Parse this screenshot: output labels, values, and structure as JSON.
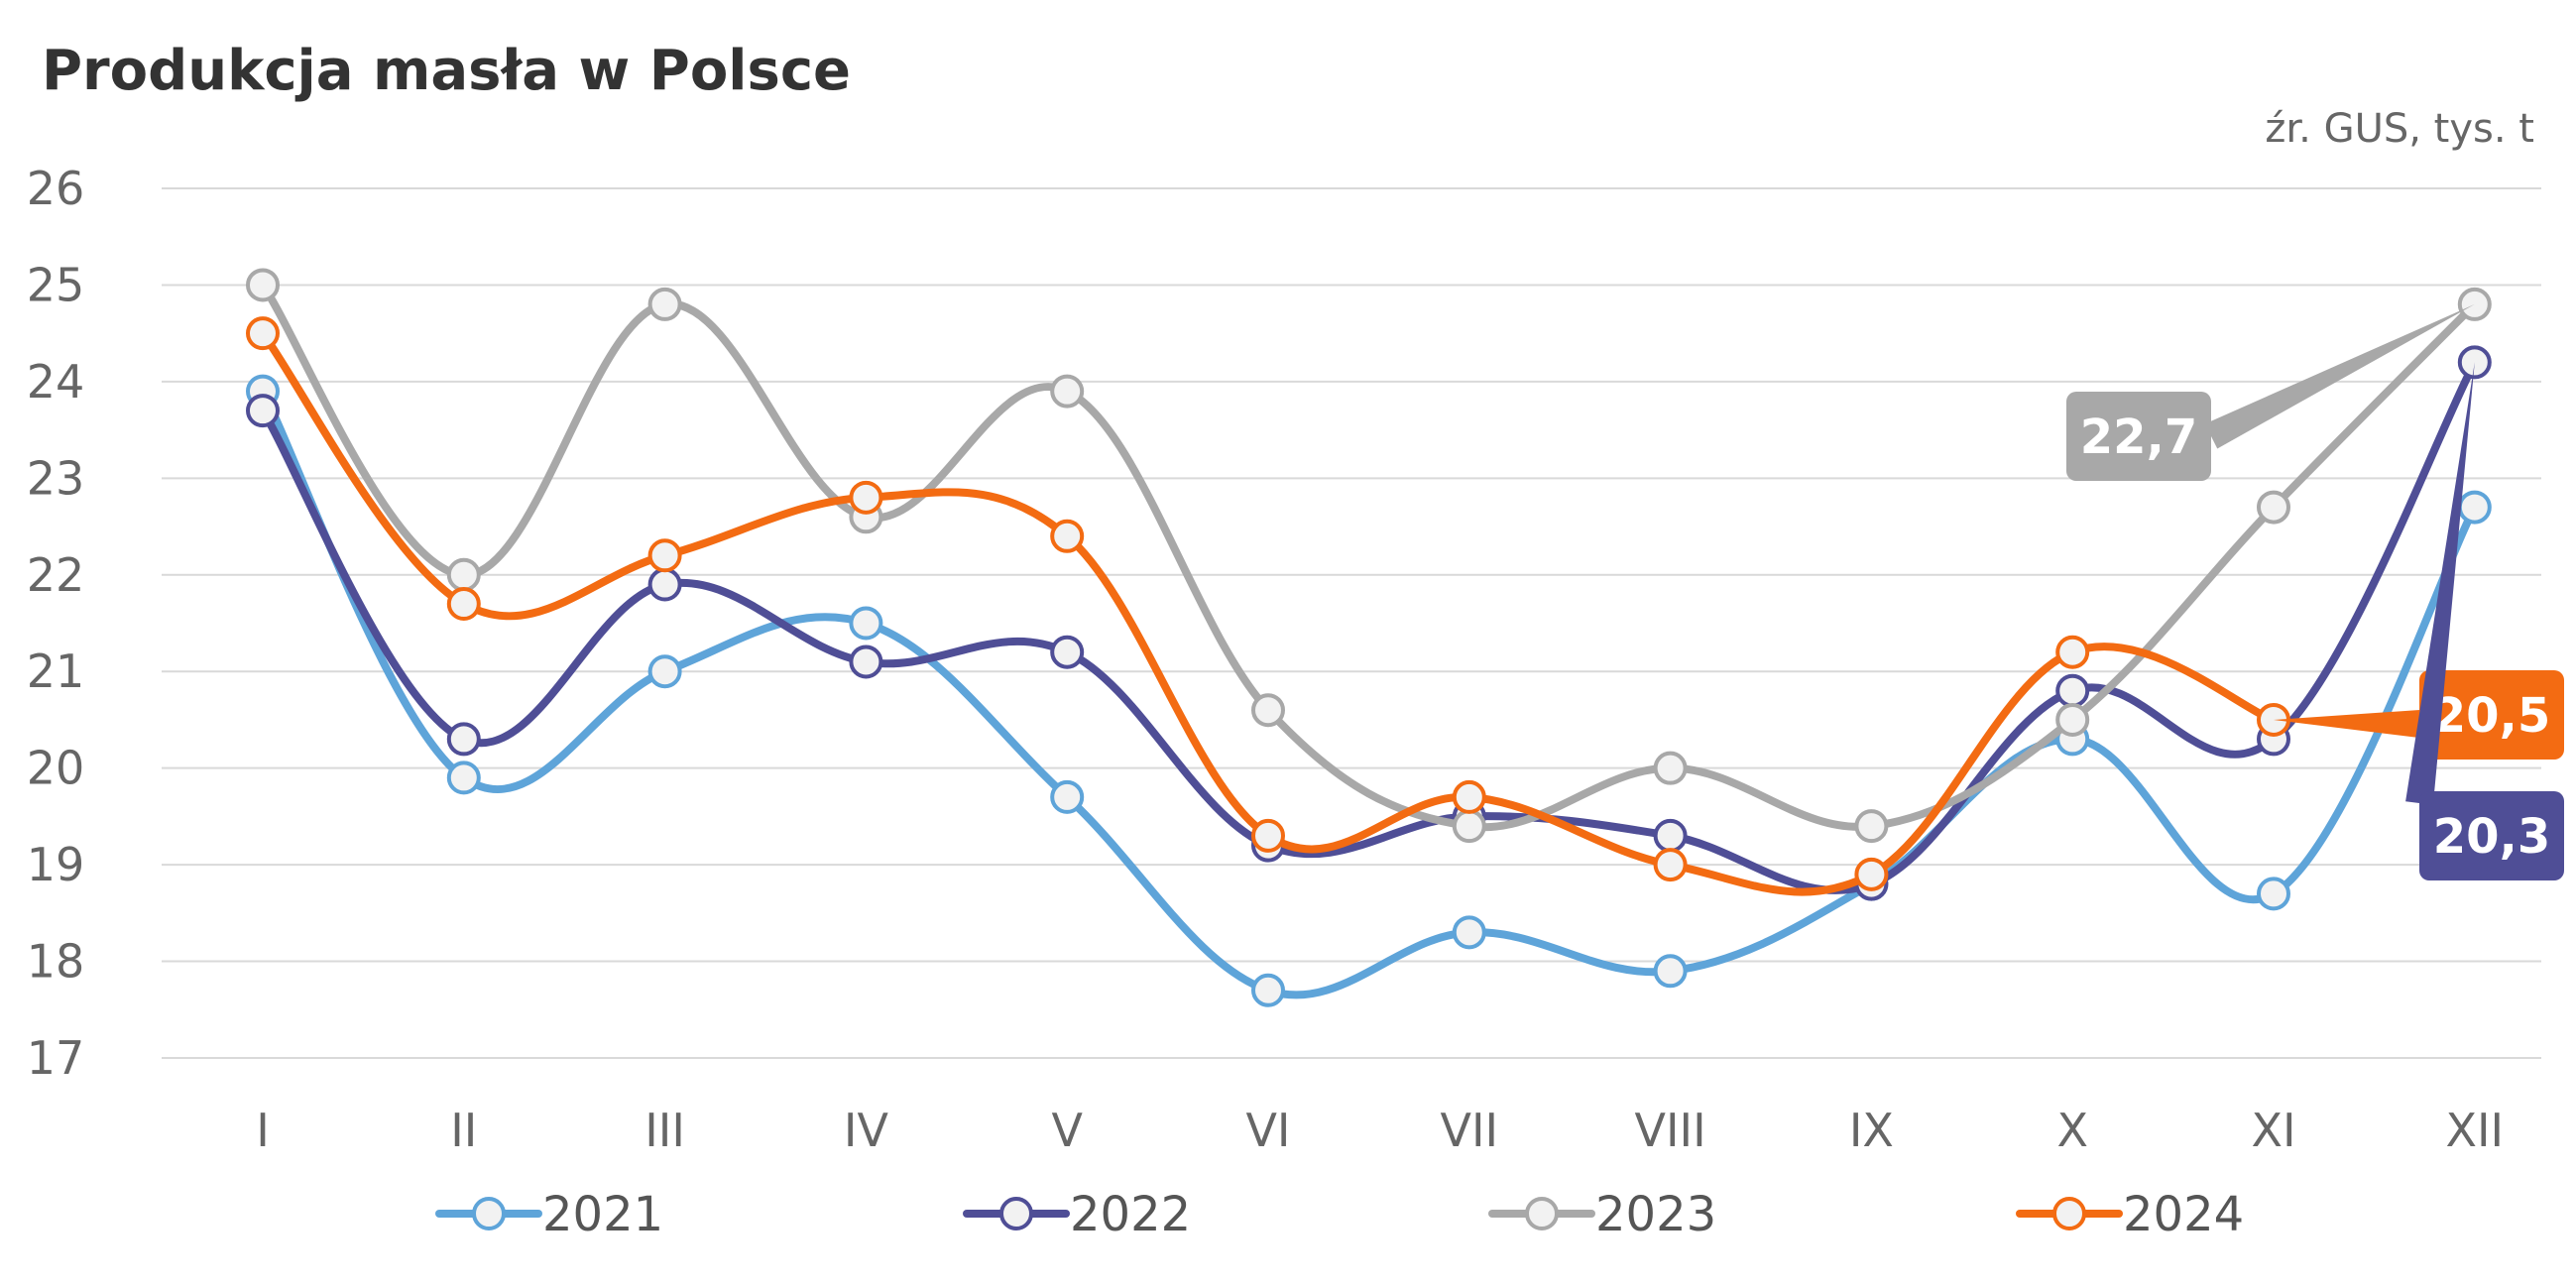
{
  "chart_data": {
    "type": "line",
    "title": "Produkcja masła w Polsce",
    "source": "źr. GUS, tys. t",
    "xlabel": "",
    "ylabel": "",
    "categories": [
      "I",
      "II",
      "III",
      "IV",
      "V",
      "VI",
      "VII",
      "VIII",
      "IX",
      "X",
      "XI",
      "XII"
    ],
    "ylim": [
      17,
      26
    ],
    "yticks": [
      "17",
      "18",
      "19",
      "20",
      "21",
      "22",
      "23",
      "24",
      "25",
      "26"
    ],
    "grid": true,
    "legend_position": "bottom",
    "series": [
      {
        "name": "2021",
        "color": "#5ea4d9",
        "values": [
          23.9,
          19.9,
          21.0,
          21.5,
          19.7,
          17.7,
          18.3,
          17.9,
          18.8,
          20.3,
          18.7,
          22.7
        ]
      },
      {
        "name": "2022",
        "color": "#4f4e96",
        "values": [
          23.7,
          20.3,
          21.9,
          21.1,
          21.2,
          19.2,
          19.5,
          19.3,
          18.8,
          20.8,
          20.3,
          24.2
        ]
      },
      {
        "name": "2023",
        "color": "#a8a8a8",
        "values": [
          25.0,
          22.0,
          24.8,
          22.6,
          23.9,
          20.6,
          19.4,
          20.0,
          19.4,
          20.5,
          22.7,
          24.8
        ]
      },
      {
        "name": "2024",
        "color": "#f36b12",
        "values": [
          24.5,
          21.7,
          22.2,
          22.8,
          22.4,
          19.3,
          19.7,
          19.0,
          18.9,
          21.2,
          20.5,
          null
        ]
      }
    ],
    "callouts": [
      {
        "series": "2023",
        "label": "22,7",
        "color": "#a8a8a8"
      },
      {
        "series": "2024",
        "label": "20,5",
        "color": "#f36b12"
      },
      {
        "series": "2022",
        "label": "20,3",
        "color": "#4f4e96"
      }
    ]
  }
}
